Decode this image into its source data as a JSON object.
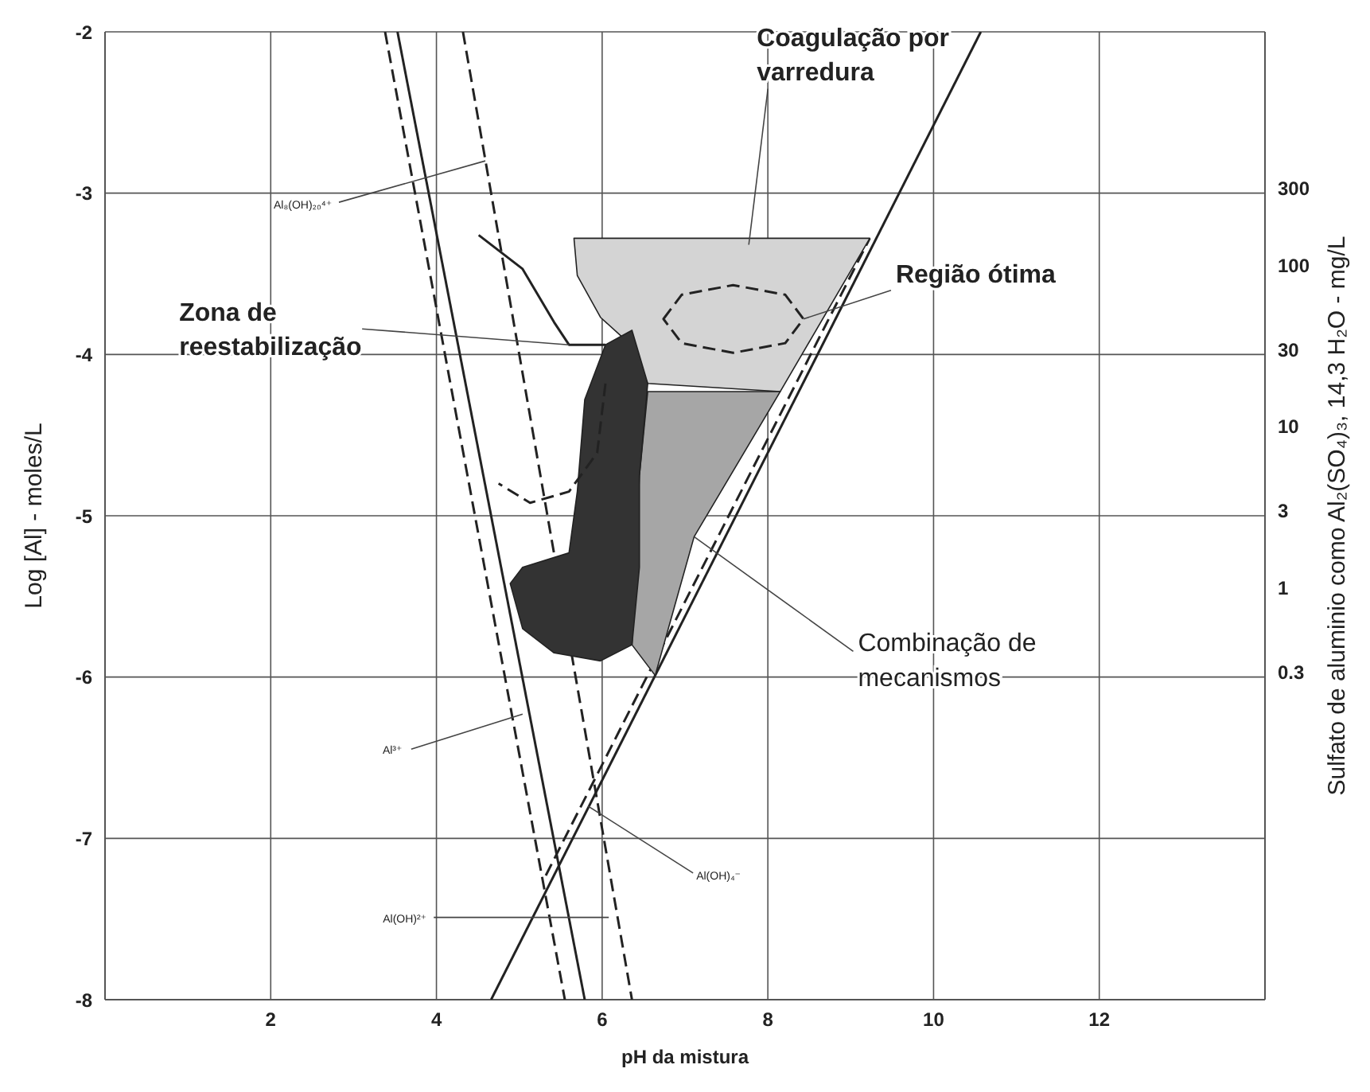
{
  "chart_data": {
    "type": "line",
    "xlabel": "pH da mistura",
    "ylabel": "Log [Al] - moles/L",
    "y2label": "Sulfato de aluminio como Al₂(SO₄)₃, 14,3 H₂O - mg/L",
    "xlim": [
      0,
      14
    ],
    "xticks": [
      2,
      4,
      6,
      8,
      10,
      12
    ],
    "ylim": [
      -8,
      -2
    ],
    "yticks": [
      -8,
      -7,
      -6,
      -5,
      -4,
      -3,
      -2
    ],
    "y2lim": [
      0.0028,
      2800
    ],
    "y2ticks": [
      0.3,
      1,
      3,
      10,
      30,
      100,
      300
    ],
    "log": "y2",
    "grid": true,
    "marker": "none",
    "series": [
      {
        "color": "#222222",
        "line_style": "dashed",
        "x": [
          3.38,
          5.55
        ],
        "values": [
          -2,
          -8
        ]
      },
      {
        "color": "#222222",
        "line_style": "solid",
        "x": [
          3.53,
          5.79
        ],
        "values": [
          -2,
          -8
        ]
      },
      {
        "color": "#222222",
        "line_style": "dashed",
        "x": [
          4.32,
          6.36
        ],
        "values": [
          -2,
          -8
        ]
      },
      {
        "color": "#222222",
        "line_style": "solid",
        "x": [
          4.66,
          10.57
        ],
        "values": [
          -8,
          -2
        ]
      },
      {
        "color": "#222222",
        "line_style": "dashed",
        "x": [
          5.32,
          9.23
        ],
        "values": [
          -7.23,
          -3.28
        ]
      },
      {
        "type": "area",
        "color": "#d4d4d4",
        "x": [
          5.66,
          9.23,
          8.15,
          6.55,
          6.26,
          5.98,
          5.7,
          5.66
        ],
        "values": [
          -3.28,
          -3.28,
          -4.23,
          -4.18,
          -3.9,
          -3.77,
          -3.51,
          -3.28
        ]
      },
      {
        "type": "area",
        "color": "#a6a6a6",
        "x": [
          6.55,
          8.15,
          7.11,
          6.64,
          6.36,
          6.45,
          6.55
        ],
        "values": [
          -4.23,
          -4.23,
          -5.13,
          -5.99,
          -5.8,
          -4.75,
          -4.23
        ]
      },
      {
        "type": "area",
        "color": "#333333",
        "x": [
          6.04,
          6.36,
          6.55,
          6.45,
          6.45,
          6.36,
          5.98,
          5.42,
          5.04,
          4.89,
          5.04,
          5.6,
          5.7,
          5.79,
          6.04
        ],
        "values": [
          -3.94,
          -3.85,
          -4.18,
          -4.75,
          -5.32,
          -5.8,
          -5.9,
          -5.85,
          -5.7,
          -5.42,
          -5.32,
          -5.23,
          -4.85,
          -4.28,
          -3.94
        ]
      },
      {
        "type": "area",
        "color": "#d4d4d4",
        "line_style": "dashed",
        "x": [
          6.74,
          6.96,
          7.58,
          8.21,
          8.43,
          8.21,
          7.58,
          6.96,
          6.74
        ],
        "values": [
          -3.78,
          -3.63,
          -3.57,
          -3.63,
          -3.78,
          -3.93,
          -3.99,
          -3.93,
          -3.78
        ]
      },
      {
        "color": "#222222",
        "line_style": "solid",
        "x": [
          4.51,
          5.04,
          5.42,
          5.6,
          6.04
        ],
        "values": [
          -3.26,
          -3.47,
          -3.8,
          -3.94,
          -3.94
        ]
      },
      {
        "color": "#222222",
        "line_style": "dashed",
        "x": [
          6.04,
          5.94,
          5.6,
          5.13,
          4.75
        ],
        "values": [
          -4.18,
          -4.61,
          -4.85,
          -4.92,
          -4.8
        ]
      }
    ],
    "annotations": [
      {
        "text": "Coagulação por varredura",
        "x": 7.77,
        "y": -3.32
      },
      {
        "text": "Região ótima",
        "x": 8.43,
        "y": -3.78
      },
      {
        "text": "Zona de reestabilização",
        "x": 5.6,
        "y": -3.94
      },
      {
        "text": "Combinação de mecanismos",
        "x": 7.11,
        "y": -5.13
      },
      {
        "text": "Al₈(OH)₂₀⁴⁺",
        "x": 4.59,
        "y": -2.8
      },
      {
        "text": "Al³⁺",
        "x": 5.04,
        "y": -6.23
      },
      {
        "text": "Al(OH)₄⁻",
        "x": 5.83,
        "y": -6.8
      },
      {
        "text": "Al(OH)²⁺",
        "x": 6.08,
        "y": -7.49
      }
    ]
  }
}
